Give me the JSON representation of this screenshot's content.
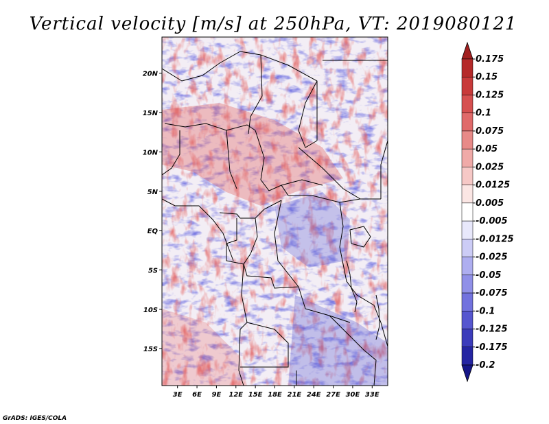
{
  "chart_data": {
    "type": "heatmap",
    "title": "Vertical velocity [m/s] at 250hPa, VT: 2019080121",
    "x_tick_labels": [
      "3E",
      "6E",
      "9E",
      "12E",
      "15E",
      "18E",
      "21E",
      "24E",
      "27E",
      "30E",
      "33E"
    ],
    "x_ticks": [
      3,
      6,
      9,
      12,
      15,
      18,
      21,
      24,
      27,
      30,
      33
    ],
    "y_tick_labels": [
      "20N",
      "15N",
      "10N",
      "5N",
      "EQ",
      "5S",
      "10S",
      "15S"
    ],
    "y_ticks": [
      20,
      15,
      10,
      5,
      0,
      -5,
      -10,
      -15
    ],
    "lon_range": [
      0.6,
      35.4
    ],
    "lat_range": [
      -19.7,
      24.6
    ],
    "colorbar": {
      "labels": [
        "0.175",
        "0.15",
        "0.125",
        "0.1",
        "0.075",
        "0.05",
        "0.025",
        "0.0125",
        "0.005",
        "-0.005",
        "-0.0125",
        "-0.025",
        "-0.05",
        "-0.075",
        "-0.1",
        "-0.125",
        "-0.175",
        "-0.2"
      ],
      "colors": [
        "#a11f1f",
        "#b52a2a",
        "#c83a3a",
        "#d65050",
        "#e06a6a",
        "#e88a88",
        "#f0aaa8",
        "#f6c8c6",
        "#fbe6e4",
        "#ffffff",
        "#e8e8fb",
        "#ccccf6",
        "#aeaef0",
        "#9090e8",
        "#7272de",
        "#5656cf",
        "#3c3cbb",
        "#2525a2",
        "#161688"
      ],
      "units": "m/s"
    }
  },
  "credit": "GrADS: IGES/COLA"
}
